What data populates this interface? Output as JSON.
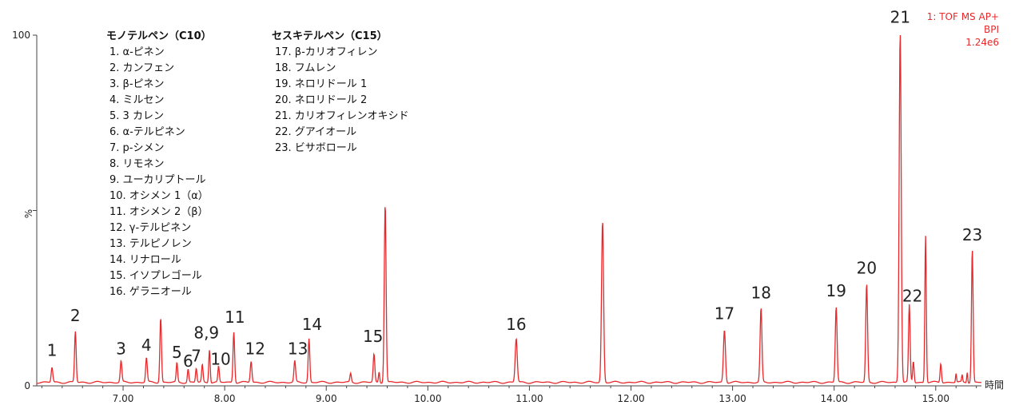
{
  "chart_data": {
    "type": "line",
    "xlabel": "時間",
    "ylabel": "%",
    "xlim": [
      6.15,
      15.45
    ],
    "ylim": [
      0,
      100
    ],
    "x_ticks": [
      7.0,
      8.0,
      9.0,
      10.0,
      11.0,
      12.0,
      13.0,
      14.0,
      15.0
    ],
    "x_tick_labels": [
      "7.00",
      "8.00",
      "9.00",
      "10.00",
      "11.00",
      "12.00",
      "13.00",
      "14.00",
      "15.00"
    ],
    "y_ticks": [
      0,
      50,
      100
    ],
    "y_tick_labels": [
      "0",
      "",
      "100"
    ],
    "line_color": "#e8282b",
    "baseline": 1.0,
    "info": [
      "1: TOF MS AP+",
      "BPI",
      "1.24e6"
    ],
    "peaks": [
      {
        "x": 6.3,
        "y": 4.2,
        "w": 0.008
      },
      {
        "x": 6.53,
        "y": 14.5,
        "w": 0.008
      },
      {
        "x": 6.98,
        "y": 6.0,
        "w": 0.008
      },
      {
        "x": 7.23,
        "y": 7.0,
        "w": 0.008
      },
      {
        "x": 7.37,
        "y": 18.5,
        "w": 0.008
      },
      {
        "x": 7.53,
        "y": 5.5,
        "w": 0.007
      },
      {
        "x": 7.64,
        "y": 3.8,
        "w": 0.007
      },
      {
        "x": 7.72,
        "y": 4.0,
        "w": 0.007
      },
      {
        "x": 7.78,
        "y": 5.0,
        "w": 0.007
      },
      {
        "x": 7.85,
        "y": 9.5,
        "w": 0.007
      },
      {
        "x": 7.94,
        "y": 4.5,
        "w": 0.007
      },
      {
        "x": 8.09,
        "y": 14.5,
        "w": 0.008
      },
      {
        "x": 8.26,
        "y": 6.0,
        "w": 0.008
      },
      {
        "x": 8.69,
        "y": 6.0,
        "w": 0.008
      },
      {
        "x": 8.83,
        "y": 12.5,
        "w": 0.008
      },
      {
        "x": 9.24,
        "y": 2.5,
        "w": 0.007
      },
      {
        "x": 9.47,
        "y": 8.0,
        "w": 0.008
      },
      {
        "x": 9.52,
        "y": 3.0,
        "w": 0.006
      },
      {
        "x": 9.58,
        "y": 51.0,
        "w": 0.009
      },
      {
        "x": 10.87,
        "y": 12.5,
        "w": 0.01
      },
      {
        "x": 11.72,
        "y": 46.0,
        "w": 0.01
      },
      {
        "x": 12.92,
        "y": 15.0,
        "w": 0.01
      },
      {
        "x": 13.28,
        "y": 21.0,
        "w": 0.009
      },
      {
        "x": 14.02,
        "y": 21.5,
        "w": 0.009
      },
      {
        "x": 14.32,
        "y": 28.0,
        "w": 0.009
      },
      {
        "x": 14.65,
        "y": 100.0,
        "w": 0.01
      },
      {
        "x": 14.74,
        "y": 22.0,
        "w": 0.008
      },
      {
        "x": 14.78,
        "y": 6.0,
        "w": 0.007
      },
      {
        "x": 14.9,
        "y": 42.0,
        "w": 0.007
      },
      {
        "x": 15.05,
        "y": 5.5,
        "w": 0.007
      },
      {
        "x": 15.2,
        "y": 2.5,
        "w": 0.005
      },
      {
        "x": 15.26,
        "y": 2.0,
        "w": 0.005
      },
      {
        "x": 15.31,
        "y": 3.0,
        "w": 0.005
      },
      {
        "x": 15.36,
        "y": 38.0,
        "w": 0.008
      }
    ],
    "peak_labels": [
      {
        "text": "1",
        "x": 6.3,
        "y": 8.5
      },
      {
        "text": "2",
        "x": 6.53,
        "y": 18.5
      },
      {
        "text": "3",
        "x": 6.98,
        "y": 9.0
      },
      {
        "text": "4",
        "x": 7.23,
        "y": 10.0
      },
      {
        "text": "5",
        "x": 7.53,
        "y": 8.0
      },
      {
        "text": "6",
        "x": 7.64,
        "y": 5.5
      },
      {
        "text": "7",
        "x": 7.72,
        "y": 7.0
      },
      {
        "text": "8,9",
        "x": 7.82,
        "y": 13.5
      },
      {
        "text": "10",
        "x": 7.96,
        "y": 6.0
      },
      {
        "text": "11",
        "x": 8.1,
        "y": 18.0
      },
      {
        "text": "12",
        "x": 8.3,
        "y": 9.0
      },
      {
        "text": "13",
        "x": 8.72,
        "y": 9.0
      },
      {
        "text": "14",
        "x": 8.86,
        "y": 16.0
      },
      {
        "text": "15",
        "x": 9.46,
        "y": 12.5
      },
      {
        "text": "16",
        "x": 10.87,
        "y": 16.0
      },
      {
        "text": "17",
        "x": 12.92,
        "y": 19.0
      },
      {
        "text": "18",
        "x": 13.28,
        "y": 25.0
      },
      {
        "text": "19",
        "x": 14.02,
        "y": 25.5
      },
      {
        "text": "20",
        "x": 14.32,
        "y": 32.0
      },
      {
        "text": "21",
        "x": 14.65,
        "y": 103.5
      },
      {
        "text": "22",
        "x": 14.77,
        "y": 24.0
      },
      {
        "text": "23",
        "x": 15.36,
        "y": 41.5
      }
    ],
    "legend": [
      {
        "title": "モノテルペン（C10）",
        "items": [
          "1. α-ピネン",
          "2. カンフェン",
          "3. β-ピネン",
          "4. ミルセン",
          "5. 3 カレン",
          "6. α-テルピネン",
          "7. p-シメン",
          "8. リモネン",
          "9. ユーカリプトール",
          "10. オシメン 1（α）",
          "11. オシメン 2（β）",
          "12. γ-テルピネン",
          "13. テルピノレン",
          "14. リナロール",
          "15. イソプレゴール",
          "16. ゲラニオール"
        ]
      },
      {
        "title": "セスキテルペン（C15）",
        "items": [
          "17. β-カリオフィレン",
          "18. フムレン",
          "19. ネロリドール 1",
          "20. ネロリドール 2",
          "21. カリオフィレンオキシド",
          "22. グアイオール",
          "23. ビサボロール"
        ]
      }
    ]
  }
}
